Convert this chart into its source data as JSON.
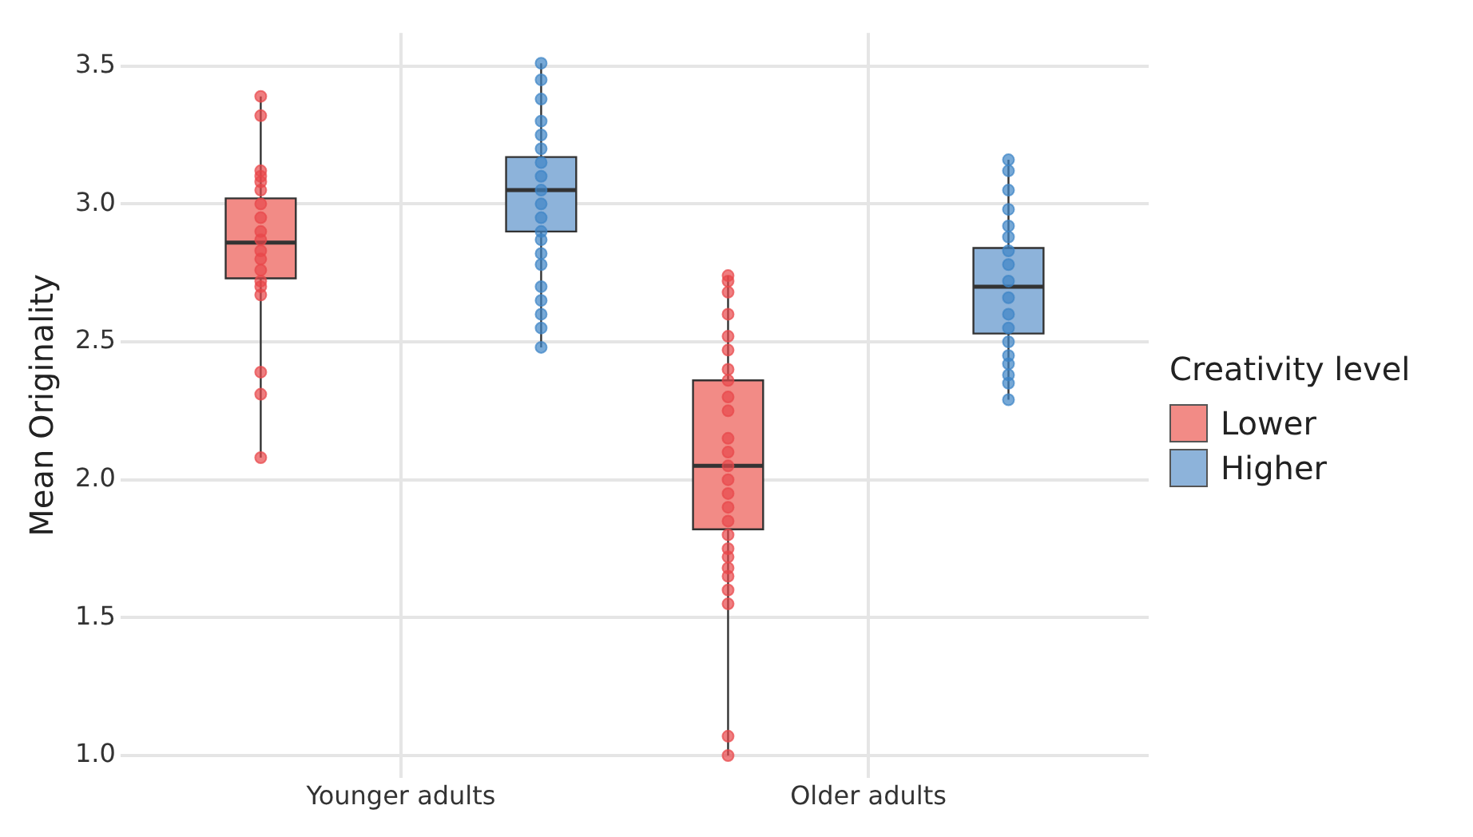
{
  "chart_data": {
    "type": "box",
    "ylabel": "Mean Originality",
    "legend_title": "Creativity level",
    "legend": "right",
    "grid": true,
    "categories": [
      "Younger adults",
      "Older adults"
    ],
    "ylim": [
      0.92,
      3.62
    ],
    "yticks": [
      {
        "value": 1,
        "label": "1.0"
      },
      1.5,
      {
        "value": 2,
        "label": "2.0"
      },
      2.5,
      {
        "value": 3,
        "label": "3.0"
      },
      3.5
    ],
    "series": [
      {
        "type": "box",
        "name": "Lower",
        "color": "#f28b86",
        "boxes": [
          {
            "low": 2.08,
            "q1": 2.73,
            "median": 2.86,
            "q3": 3.02,
            "high": 3.39
          },
          {
            "low": 1.0,
            "q1": 1.82,
            "median": 2.05,
            "q3": 2.36,
            "high": 2.74
          }
        ]
      },
      {
        "type": "box",
        "name": "Higher",
        "color": "#8db3da",
        "boxes": [
          {
            "low": 2.48,
            "q1": 2.9,
            "median": 3.05,
            "q3": 3.17,
            "high": 3.51
          },
          {
            "low": 2.29,
            "q1": 2.53,
            "median": 2.7,
            "q3": 2.84,
            "high": 3.16
          }
        ]
      },
      {
        "type": "scatter",
        "color": "#e8474a",
        "x": [
          "Younger adults",
          "Younger adults",
          "Younger adults",
          "Younger adults",
          "Younger adults",
          "Younger adults",
          "Younger adults",
          "Younger adults",
          "Younger adults",
          "Younger adults",
          "Younger adults",
          "Younger adults",
          "Younger adults",
          "Younger adults",
          "Younger adults",
          "Younger adults",
          "Younger adults",
          "Younger adults",
          "Younger adults",
          "Older adults",
          "Older adults",
          "Older adults",
          "Older adults",
          "Older adults",
          "Older adults",
          "Older adults",
          "Older adults",
          "Older adults",
          "Older adults",
          "Older adults",
          "Older adults",
          "Older adults",
          "Older adults",
          "Older adults",
          "Older adults",
          "Older adults",
          "Older adults",
          "Older adults",
          "Older adults",
          "Older adults",
          "Older adults",
          "Older adults",
          "Older adults",
          "Older adults",
          "Older adults"
        ],
        "values": [
          3.39,
          3.32,
          3.12,
          3.1,
          3.08,
          3.05,
          3.0,
          2.95,
          2.9,
          2.87,
          2.83,
          2.8,
          2.76,
          2.72,
          2.7,
          2.67,
          2.39,
          2.31,
          2.08,
          2.74,
          2.72,
          2.68,
          2.6,
          2.52,
          2.47,
          2.4,
          2.36,
          2.3,
          2.25,
          2.15,
          2.1,
          2.05,
          2.0,
          1.95,
          1.9,
          1.85,
          1.8,
          1.75,
          1.72,
          1.68,
          1.65,
          1.6,
          1.55,
          1.07,
          1.0
        ]
      },
      {
        "type": "scatter",
        "color": "#3d85c6",
        "x": [
          "Younger adults",
          "Younger adults",
          "Younger adults",
          "Younger adults",
          "Younger adults",
          "Younger adults",
          "Younger adults",
          "Younger adults",
          "Younger adults",
          "Younger adults",
          "Younger adults",
          "Younger adults",
          "Younger adults",
          "Younger adults",
          "Younger adults",
          "Younger adults",
          "Younger adults",
          "Younger adults",
          "Younger adults",
          "Younger adults",
          "Older adults",
          "Older adults",
          "Older adults",
          "Older adults",
          "Older adults",
          "Older adults",
          "Older adults",
          "Older adults",
          "Older adults",
          "Older adults",
          "Older adults",
          "Older adults",
          "Older adults",
          "Older adults",
          "Older adults",
          "Older adults",
          "Older adults",
          "Older adults"
        ],
        "values": [
          3.51,
          3.45,
          3.38,
          3.3,
          3.25,
          3.2,
          3.15,
          3.1,
          3.05,
          3.0,
          2.95,
          2.9,
          2.87,
          2.82,
          2.78,
          2.7,
          2.65,
          2.6,
          2.55,
          2.48,
          3.16,
          3.12,
          3.05,
          2.98,
          2.92,
          2.88,
          2.83,
          2.78,
          2.72,
          2.66,
          2.6,
          2.55,
          2.5,
          2.45,
          2.42,
          2.38,
          2.35,
          2.29
        ]
      }
    ]
  }
}
